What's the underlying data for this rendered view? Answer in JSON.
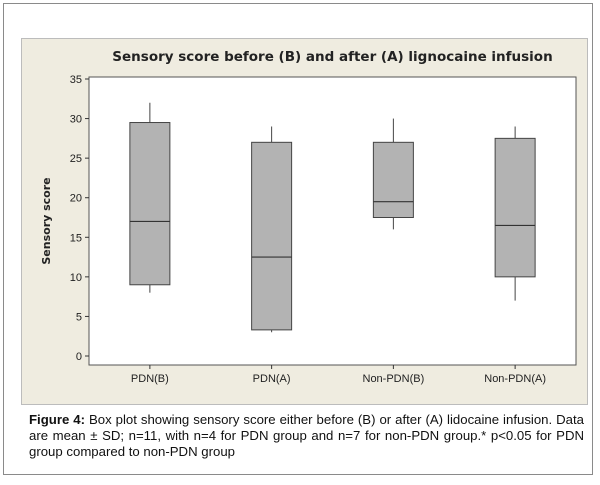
{
  "figure": {
    "caption_label": "Figure 4:",
    "caption_text": " Box plot showing sensory score either before (B) or after (A) lidocaine infusion. Data are mean ± SD; n=11, with n=4 for PDN group and n=7 for non-PDN group.* p<0.05 for PDN group compared to non-PDN group"
  },
  "chart_data": {
    "type": "box",
    "title": "Sensory score before (B) and after (A) lignocaine infusion",
    "xlabel": "",
    "ylabel": "Sensory score",
    "ylim": [
      0,
      35
    ],
    "yticks": [
      0,
      5,
      10,
      15,
      20,
      25,
      30,
      35
    ],
    "grid": false,
    "categories": [
      "PDN(B)",
      "PDN(A)",
      "Non-PDN(B)",
      "Non-PDN(A)"
    ],
    "boxes": [
      {
        "category": "PDN(B)",
        "min": 8,
        "q1": 9,
        "median": 17,
        "q3": 29.5,
        "max": 32
      },
      {
        "category": "PDN(A)",
        "min": 3,
        "q1": 3.3,
        "median": 12.5,
        "q3": 27,
        "max": 29
      },
      {
        "category": "Non-PDN(B)",
        "min": 16,
        "q1": 17.5,
        "median": 19.5,
        "q3": 27,
        "max": 30
      },
      {
        "category": "Non-PDN(A)",
        "min": 7,
        "q1": 10,
        "median": 16.5,
        "q3": 27.5,
        "max": 29
      }
    ],
    "colors": {
      "box_fill": "#b3b3b3",
      "box_stroke": "#444444",
      "background": "#efece0",
      "plot_background": "#ffffff"
    }
  }
}
